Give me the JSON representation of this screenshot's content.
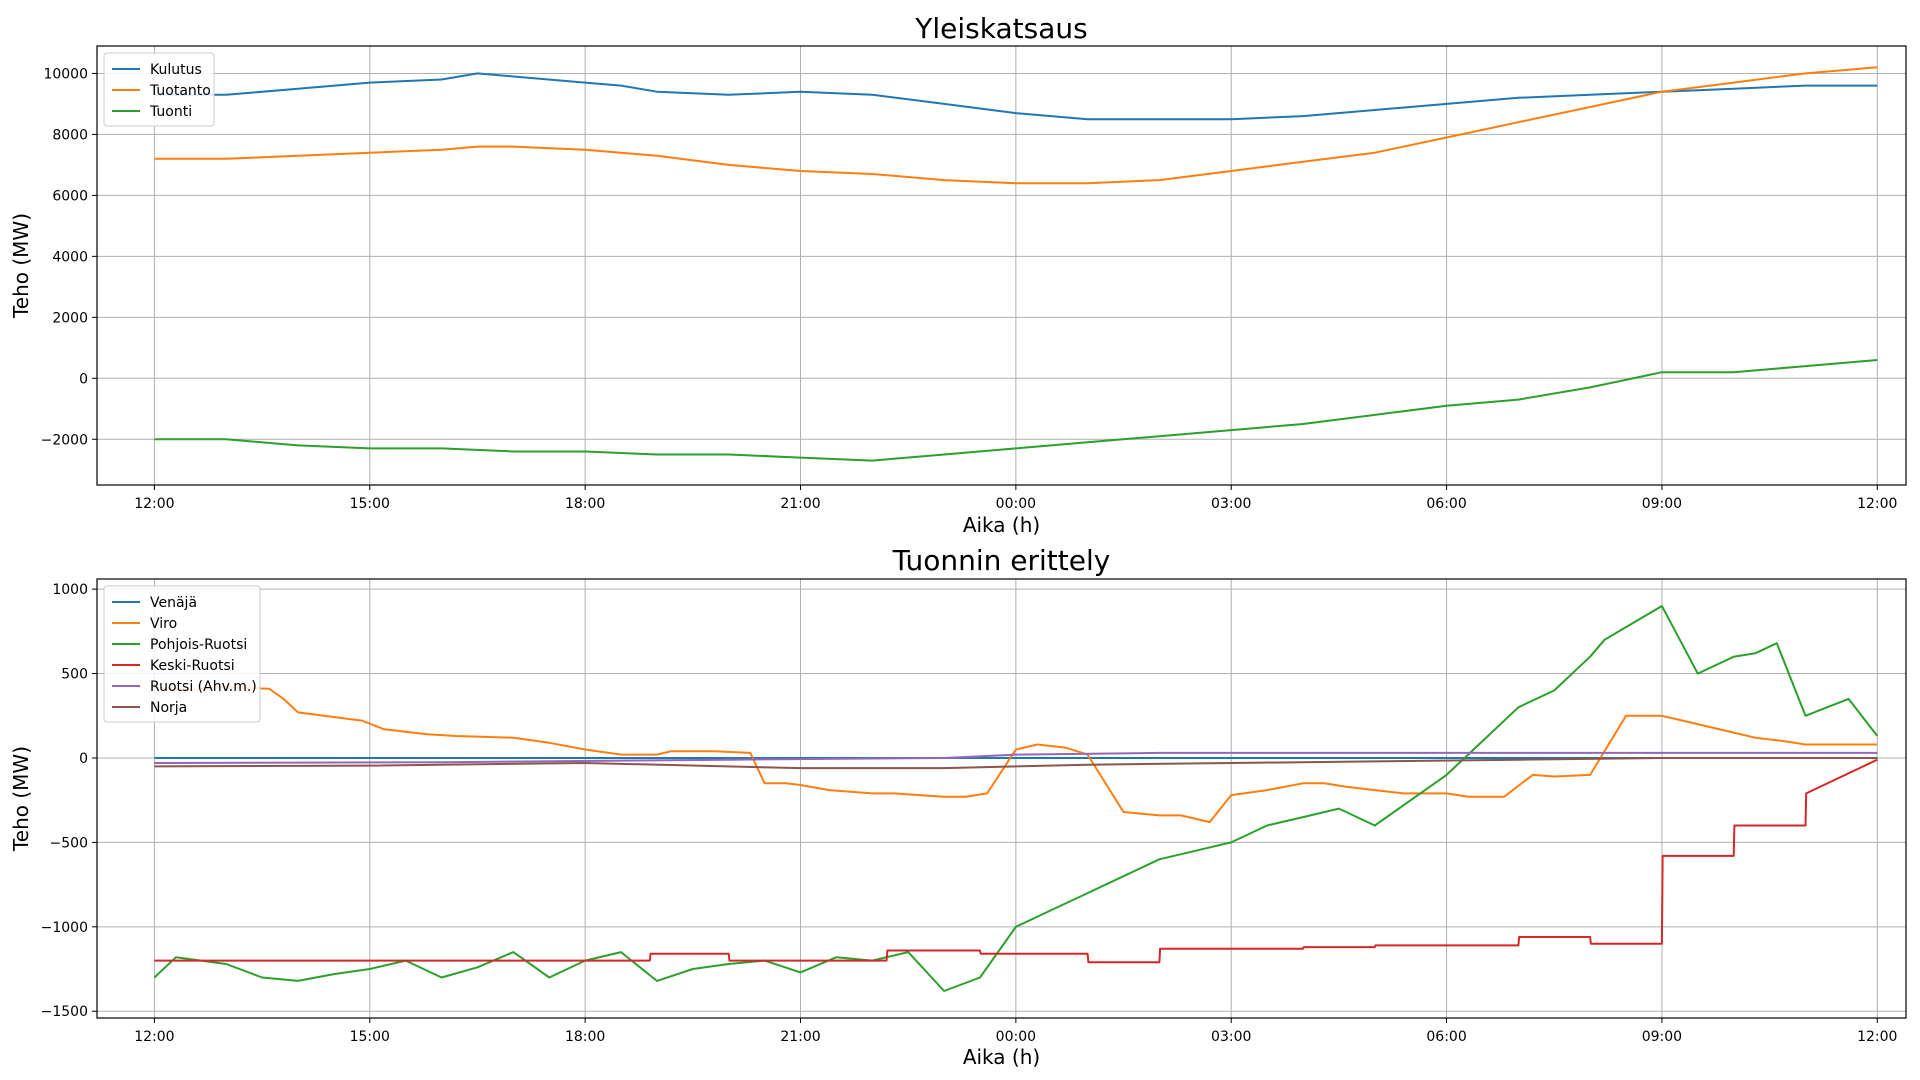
{
  "chart_data": [
    {
      "type": "line",
      "title": "Yleiskatsaus",
      "xlabel": "Aika (h)",
      "ylabel": "Teho (MW)",
      "xlim": [
        -0.8,
        24.4
      ],
      "ylim": [
        -3500,
        10900
      ],
      "xticks": [
        0,
        3,
        6,
        9,
        12,
        15,
        18,
        21,
        24
      ],
      "xtick_labels": [
        "12:00",
        "15:00",
        "18:00",
        "21:00",
        "00:00",
        "03:00",
        "06:00",
        "09:00",
        "12:00"
      ],
      "yticks": [
        -2000,
        0,
        2000,
        4000,
        6000,
        8000,
        10000
      ],
      "ytick_labels": [
        "−2000",
        "0",
        "2000",
        "4000",
        "6000",
        "8000",
        "10000"
      ],
      "grid": true,
      "legend": "top-left",
      "series": [
        {
          "name": "Kulutus",
          "color": "#1f77b4",
          "x": [
            0,
            1,
            2,
            3,
            4,
            4.5,
            5,
            6,
            6.5,
            7,
            8,
            9,
            10,
            11,
            12,
            13,
            14,
            15,
            16,
            17,
            18,
            19,
            20,
            21,
            22,
            23,
            24
          ],
          "y": [
            9300,
            9300,
            9500,
            9700,
            9800,
            10000,
            9900,
            9700,
            9600,
            9400,
            9300,
            9400,
            9300,
            9000,
            8700,
            8500,
            8500,
            8500,
            8600,
            8800,
            9000,
            9200,
            9300,
            9400,
            9500,
            9600,
            9600
          ]
        },
        {
          "name": "Tuotanto",
          "color": "#ff7f0e",
          "x": [
            0,
            1,
            2,
            3,
            4,
            4.5,
            5,
            6,
            7,
            8,
            9,
            10,
            11,
            12,
            13,
            14,
            15,
            16,
            17,
            18,
            19,
            20,
            21,
            22,
            23,
            24
          ],
          "y": [
            7200,
            7200,
            7300,
            7400,
            7500,
            7600,
            7600,
            7500,
            7300,
            7000,
            6800,
            6700,
            6500,
            6400,
            6400,
            6500,
            6800,
            7100,
            7400,
            7900,
            8400,
            8900,
            9400,
            9700,
            10000,
            10200
          ]
        },
        {
          "name": "Tuonti",
          "color": "#2ca02c",
          "x": [
            0,
            1,
            2,
            3,
            4,
            5,
            6,
            7,
            8,
            9,
            10,
            11,
            12,
            13,
            14,
            15,
            16,
            17,
            18,
            19,
            20,
            21,
            22,
            23,
            24
          ],
          "y": [
            -2000,
            -2000,
            -2200,
            -2300,
            -2300,
            -2400,
            -2400,
            -2500,
            -2500,
            -2600,
            -2700,
            -2500,
            -2300,
            -2100,
            -1900,
            -1700,
            -1500,
            -1200,
            -900,
            -700,
            -300,
            200,
            200,
            400,
            600
          ]
        }
      ]
    },
    {
      "type": "line",
      "title": "Tuonnin erittely",
      "xlabel": "Aika (h)",
      "ylabel": "Teho (MW)",
      "xlim": [
        -0.8,
        24.4
      ],
      "ylim": [
        -1540,
        1060
      ],
      "xticks": [
        0,
        3,
        6,
        9,
        12,
        15,
        18,
        21,
        24
      ],
      "xtick_labels": [
        "12:00",
        "15:00",
        "18:00",
        "21:00",
        "00:00",
        "03:00",
        "06:00",
        "09:00",
        "12:00"
      ],
      "yticks": [
        -1500,
        -1000,
        -500,
        0,
        500,
        1000
      ],
      "ytick_labels": [
        "−1500",
        "−1000",
        "−500",
        "0",
        "500",
        "1000"
      ],
      "grid": true,
      "legend": "top-left",
      "series": [
        {
          "name": "Venäjä",
          "color": "#1f77b4",
          "x": [
            0,
            24
          ],
          "y": [
            0,
            0
          ]
        },
        {
          "name": "Viro",
          "color": "#ff7f0e",
          "x": [
            0,
            0.5,
            0.9,
            1.6,
            1.8,
            2.0,
            2.9,
            3.2,
            3.8,
            4.2,
            5.0,
            5.5,
            6.0,
            6.5,
            7.0,
            7.2,
            7.8,
            8.3,
            8.5,
            8.8,
            9.0,
            9.4,
            10.0,
            10.3,
            11.0,
            11.3,
            11.6,
            12.0,
            12.3,
            12.7,
            13.0,
            13.5,
            14.0,
            14.3,
            14.7,
            15.0,
            15.5,
            16.0,
            16.3,
            16.6,
            17.0,
            17.4,
            18.0,
            18.3,
            18.8,
            19.2,
            19.5,
            20.0,
            20.5,
            21.0,
            21.2,
            22.0,
            22.3,
            22.7,
            23.0,
            23.5,
            24.0
          ],
          "y": [
            420,
            400,
            420,
            410,
            350,
            270,
            220,
            170,
            140,
            130,
            120,
            90,
            50,
            20,
            20,
            40,
            40,
            30,
            -150,
            -150,
            -160,
            -190,
            -210,
            -210,
            -230,
            -230,
            -210,
            50,
            80,
            60,
            20,
            -320,
            -340,
            -340,
            -380,
            -220,
            -190,
            -150,
            -150,
            -170,
            -190,
            -210,
            -210,
            -230,
            -230,
            -100,
            -110,
            -100,
            250,
            250,
            230,
            150,
            120,
            100,
            80,
            80,
            80
          ]
        },
        {
          "name": "Pohjois-Ruotsi",
          "color": "#2ca02c",
          "x": [
            0,
            0.3,
            1.0,
            1.5,
            2.0,
            2.5,
            3.0,
            3.5,
            4.0,
            4.5,
            5.0,
            5.5,
            6.0,
            6.5,
            7.0,
            7.5,
            8.0,
            8.5,
            9.0,
            9.5,
            10.0,
            10.5,
            11.0,
            11.5,
            12.0,
            12.5,
            13.0,
            13.5,
            14.0,
            14.5,
            15.0,
            15.5,
            16.0,
            16.5,
            17.0,
            17.5,
            18.0,
            18.5,
            19.0,
            19.5,
            20.0,
            20.2,
            20.6,
            21.0,
            21.5,
            22.0,
            22.3,
            22.6,
            23.0,
            23.3,
            23.6,
            24.0
          ],
          "y": [
            -1300,
            -1180,
            -1220,
            -1300,
            -1320,
            -1280,
            -1250,
            -1200,
            -1300,
            -1240,
            -1150,
            -1300,
            -1200,
            -1150,
            -1320,
            -1250,
            -1220,
            -1200,
            -1270,
            -1180,
            -1200,
            -1150,
            -1380,
            -1300,
            -1000,
            -900,
            -800,
            -700,
            -600,
            -550,
            -500,
            -400,
            -350,
            -300,
            -400,
            -250,
            -100,
            100,
            300,
            400,
            600,
            700,
            800,
            900,
            500,
            600,
            620,
            680,
            250,
            300,
            350,
            130
          ]
        },
        {
          "name": "Keski-Ruotsi",
          "color": "#d62728",
          "x": [
            0,
            6.9,
            6.91,
            8.0,
            8.01,
            10.2,
            10.21,
            11.5,
            11.51,
            13.0,
            13.01,
            14.0,
            14.01,
            16.0,
            16.01,
            17.0,
            17.01,
            19.0,
            19.01,
            20.0,
            20.01,
            21.0,
            21.01,
            22.0,
            22.01,
            23.0,
            23.01,
            24.0
          ],
          "y": [
            -1200,
            -1200,
            -1160,
            -1160,
            -1200,
            -1200,
            -1140,
            -1140,
            -1160,
            -1160,
            -1210,
            -1210,
            -1130,
            -1130,
            -1120,
            -1120,
            -1110,
            -1110,
            -1060,
            -1060,
            -1100,
            -1100,
            -580,
            -580,
            -400,
            -400,
            -210,
            -10
          ]
        },
        {
          "name": "Ruotsi (Ahv.m.)",
          "color": "#9467bd",
          "x": [
            0,
            4,
            8,
            11,
            12,
            14,
            16,
            20,
            24
          ],
          "y": [
            -30,
            -25,
            -10,
            0,
            20,
            30,
            30,
            30,
            30
          ]
        },
        {
          "name": "Norja",
          "color": "#8c564b",
          "x": [
            0,
            3,
            6,
            9,
            11,
            13,
            15,
            17,
            19,
            21,
            24
          ],
          "y": [
            -50,
            -45,
            -30,
            -60,
            -60,
            -40,
            -30,
            -20,
            -10,
            0,
            0
          ]
        }
      ]
    }
  ]
}
